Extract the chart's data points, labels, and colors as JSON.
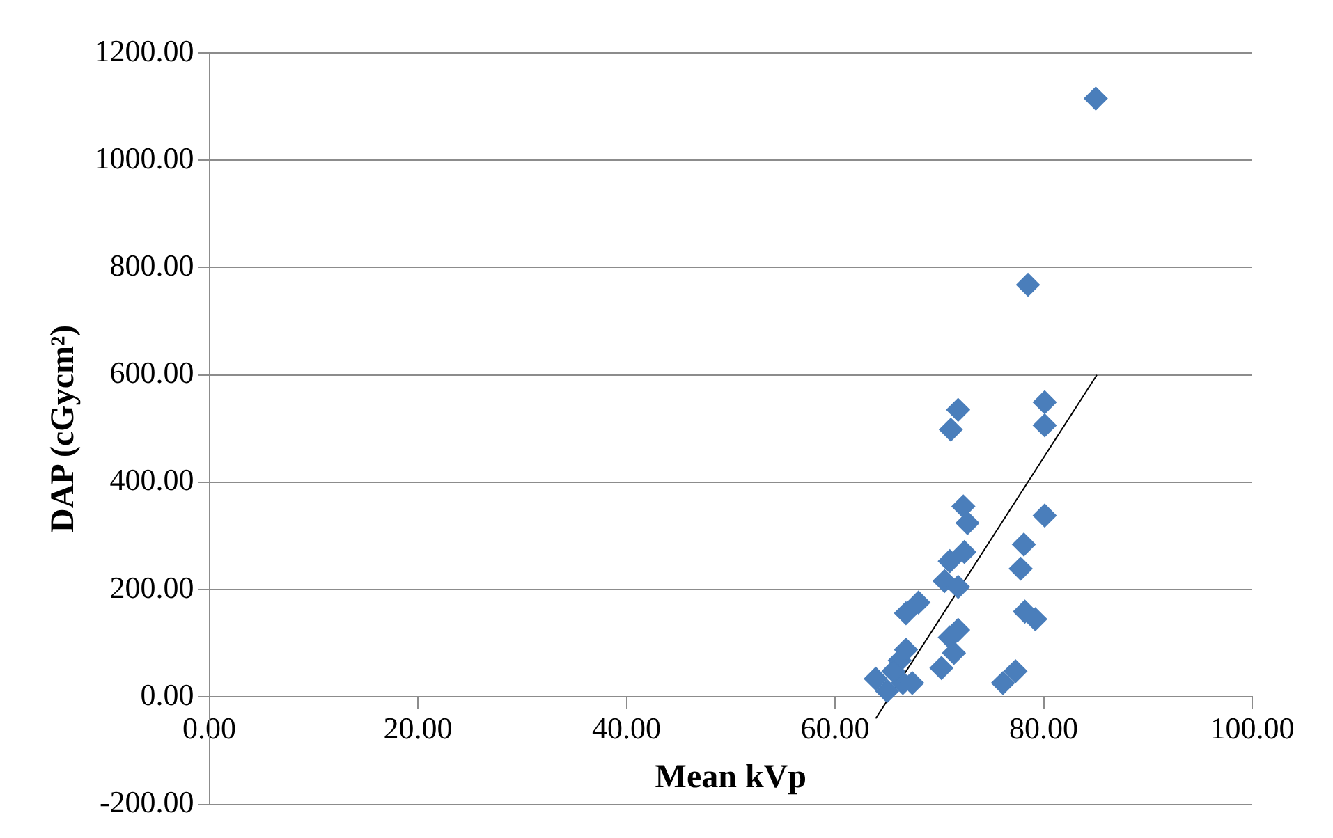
{
  "chart_data": {
    "type": "scatter",
    "xlabel": "Mean kVp",
    "ylabel": "DAP (cGycm²)",
    "xlim": [
      0,
      100
    ],
    "ylim": [
      -200,
      1200
    ],
    "xticks": [
      {
        "value": 0,
        "label": "0.00"
      },
      {
        "value": 20,
        "label": "20.00"
      },
      {
        "value": 40,
        "label": "40.00"
      },
      {
        "value": 60,
        "label": "60.00"
      },
      {
        "value": 80,
        "label": "80.00"
      },
      {
        "value": 100,
        "label": "100.00"
      }
    ],
    "yticks": [
      {
        "value": -200,
        "label": "-200.00"
      },
      {
        "value": 0,
        "label": "0.00"
      },
      {
        "value": 200,
        "label": "200.00"
      },
      {
        "value": 400,
        "label": "400.00"
      },
      {
        "value": 600,
        "label": "600.00"
      },
      {
        "value": 800,
        "label": "800.00"
      },
      {
        "value": 1000,
        "label": "1000.00"
      },
      {
        "value": 1200,
        "label": "1200.00"
      }
    ],
    "grid": "y",
    "legend": false,
    "series": [
      {
        "marker": "diamond",
        "color": "#4a7ebb",
        "x": [
          85,
          78.5,
          71.1,
          71.8,
          80.1,
          80.1,
          72.3,
          72.7,
          72.4,
          80.1,
          78.1,
          77.8,
          71,
          70.5,
          71.8,
          79.2,
          78.2,
          67.3,
          66.8,
          68,
          71,
          71.4,
          70.2,
          71.8,
          77.3,
          76.1,
          63.9,
          65,
          66.5,
          66.2,
          66.8,
          67.4,
          65.6
        ],
        "values": [
          1115,
          768,
          498,
          535,
          549,
          506,
          355,
          324,
          270,
          338,
          284,
          239,
          253,
          216,
          205,
          145,
          159,
          null,
          156,
          176,
          111,
          82,
          54,
          125,
          48,
          26,
          34,
          11,
          26,
          68,
          88,
          26,
          48
        ]
      },
      {
        "type": "line",
        "marker": "none",
        "color": "#000000",
        "x": [
          63.9,
          85.1
        ],
        "values": [
          -40,
          600
        ]
      }
    ]
  }
}
